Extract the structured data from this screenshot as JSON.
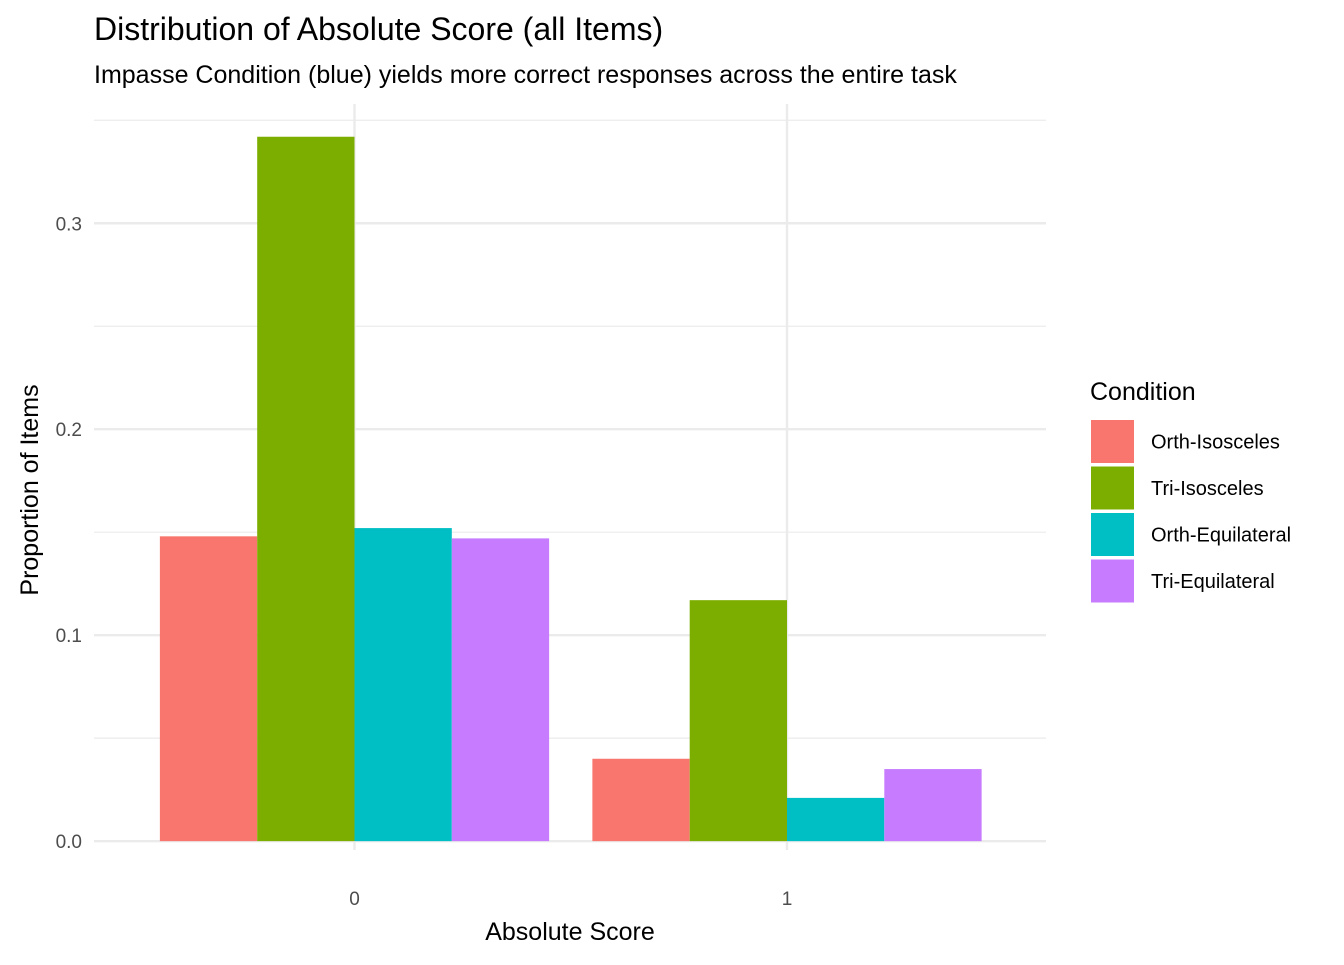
{
  "chart_data": {
    "type": "bar",
    "title": "Distribution of Absolute Score (all Items)",
    "subtitle": "Impasse Condition (blue) yields more correct responses across the entire task",
    "xlabel": "Absolute Score",
    "ylabel": "Proportion of Items",
    "categories": [
      "0",
      "1"
    ],
    "ylim": [
      -0.0043,
      0.3579
    ],
    "yticks": [
      0.0,
      0.1,
      0.2,
      0.3
    ],
    "ytick_labels": [
      "0.0",
      "0.1",
      "0.2",
      "0.3"
    ],
    "minor_yticks": [
      0.05,
      0.15,
      0.25,
      0.35
    ],
    "grid": true,
    "legend": {
      "title": "Condition",
      "position": "right"
    },
    "series": [
      {
        "name": "Orth-Isosceles",
        "color": "#F8766D",
        "values": [
          0.148,
          0.04
        ]
      },
      {
        "name": "Tri-Isosceles",
        "color": "#7CAE00",
        "values": [
          0.342,
          0.117
        ]
      },
      {
        "name": "Orth-Equilateral",
        "color": "#00BFC4",
        "values": [
          0.152,
          0.021
        ]
      },
      {
        "name": "Tri-Equilateral",
        "color": "#C77CFF",
        "values": [
          0.147,
          0.035
        ]
      }
    ]
  }
}
